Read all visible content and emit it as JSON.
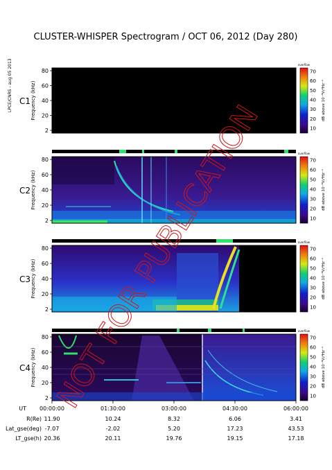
{
  "title": "CLUSTER-WHISPER Spectrogram / OCT 06, 2012 (Day 280)",
  "side_label": "LPCE/CNRS - aug 05 2013",
  "watermark": "NOT FOR PUBLICATION",
  "colors": {
    "background": "#000000",
    "c3_label": "#2fa24a",
    "watermark": "#d0161a",
    "frame": "#000000"
  },
  "chart_data": [
    {
      "type": "heatmap",
      "name": "C1",
      "panel_label": "C1",
      "ylabel": "Frequency (kHz)",
      "yticks": [
        "80",
        "60",
        "40",
        "20",
        "2"
      ],
      "ylim": [
        2,
        80
      ],
      "colorbar": {
        "label": "dB above 10⁻⁸V₂²Hz⁻¹",
        "ticks": [
          "70",
          "60",
          "50",
          "40",
          "30",
          "20",
          "10"
        ],
        "top_label": "overflow",
        "range": [
          10,
          70
        ]
      },
      "content": "no data"
    },
    {
      "type": "heatmap",
      "name": "C2",
      "panel_label": "C2",
      "ylabel": "Frequency (kHz)",
      "yticks": [
        "80",
        "60",
        "40",
        "20",
        "2"
      ],
      "ylim": [
        2,
        80
      ],
      "colorbar": {
        "label": "dB above 10⁻⁸V₂²Hz⁻¹",
        "ticks": [
          "70",
          "60",
          "50",
          "40",
          "30",
          "20",
          "10"
        ],
        "top_label": "overflow",
        "range": [
          10,
          70
        ]
      }
    },
    {
      "type": "heatmap",
      "name": "C3",
      "panel_label": "C3",
      "ylabel": "Frequency (kHz)",
      "yticks": [
        "80",
        "60",
        "40",
        "20",
        "2"
      ],
      "ylim": [
        2,
        80
      ],
      "colorbar": {
        "label": "dB above 10⁻⁸V₂²Hz⁻¹",
        "ticks": [
          "70",
          "60",
          "50",
          "40",
          "30",
          "20",
          "10"
        ],
        "top_label": "overflow",
        "range": [
          10,
          70
        ]
      }
    },
    {
      "type": "heatmap",
      "name": "C4",
      "panel_label": "C4",
      "ylabel": "Frequency (kHz)",
      "yticks": [
        "80",
        "60",
        "40",
        "20",
        "2"
      ],
      "ylim": [
        2,
        80
      ],
      "colorbar": {
        "label": "dB above 10⁻⁸V₂²Hz⁻¹",
        "ticks": [
          "70",
          "60",
          "50",
          "40",
          "30",
          "20",
          "10"
        ],
        "top_label": "overflow",
        "range": [
          10,
          70
        ]
      }
    }
  ],
  "ephemeris": {
    "labels": [
      "UT",
      "R(Re)",
      "Lat_gse(deg)",
      "LT_gse(h)"
    ],
    "columns": [
      {
        "UT": "00:00:00",
        "R": "11.90",
        "Lat": "-7.07",
        "LT": "20.36"
      },
      {
        "UT": "01:30:00",
        "R": "10.24",
        "Lat": "-2.02",
        "LT": "20.11"
      },
      {
        "UT": "03:00:00",
        "R": "8.32",
        "Lat": "5.20",
        "LT": "19.76"
      },
      {
        "UT": "04:30:00",
        "R": "6.06",
        "Lat": "17.23",
        "LT": "19.15"
      },
      {
        "UT": "06:00:00",
        "R": "3.41",
        "Lat": "43.53",
        "LT": "17.18"
      }
    ]
  }
}
